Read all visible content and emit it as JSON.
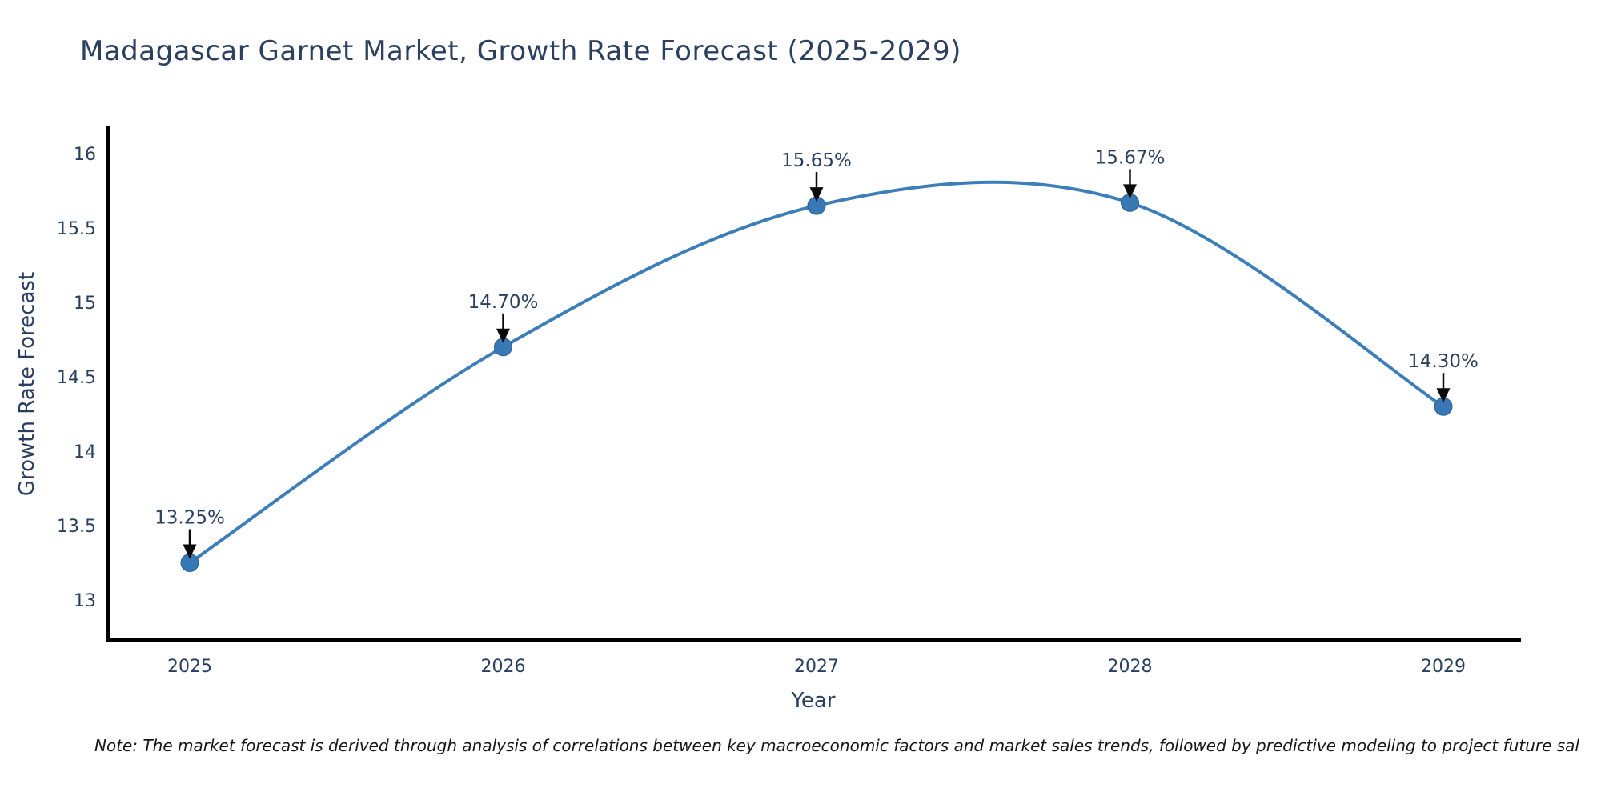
{
  "header": {
    "title": "Madagascar Garnet Market, Growth Rate Forecast (2025-2029)"
  },
  "chart_data": {
    "type": "line",
    "line_shape": "spline",
    "title": "Madagascar Garnet Market, Growth Rate Forecast (2025-2029)",
    "xlabel": "Year",
    "ylabel": "Growth Rate Forecast",
    "x": [
      2025,
      2026,
      2027,
      2028,
      2029
    ],
    "values": [
      13.25,
      14.7,
      15.65,
      15.67,
      14.3
    ],
    "point_labels": [
      "13.25%",
      "14.70%",
      "15.65%",
      "15.67%",
      "14.30%"
    ],
    "xtick_labels": [
      "2025",
      "2026",
      "2027",
      "2028",
      "2029"
    ],
    "yticks": [
      13,
      13.5,
      14,
      14.5,
      15,
      15.5,
      16
    ],
    "ytick_labels": [
      "13",
      "13.5",
      "14",
      "14.5",
      "15",
      "15.5",
      "16"
    ],
    "ylim": [
      12.73,
      16.17
    ],
    "grid": false,
    "legend": "none",
    "colors": {
      "line": "#3d7eb8",
      "marker": "#3878b4",
      "marker_edge": "#2b5f8f",
      "axis": "#000000",
      "tick_text": "#2a3f5f",
      "annotation_text": "#2a3f5f",
      "arrow": "#0a0a0a",
      "title_text": "#2b3f5e",
      "background": "#ffffff"
    }
  },
  "footer": {
    "note": "Note: The market forecast is derived through analysis of correlations between key macroeconomic factors and market sales trends, followed by predictive modeling to project future sal"
  }
}
